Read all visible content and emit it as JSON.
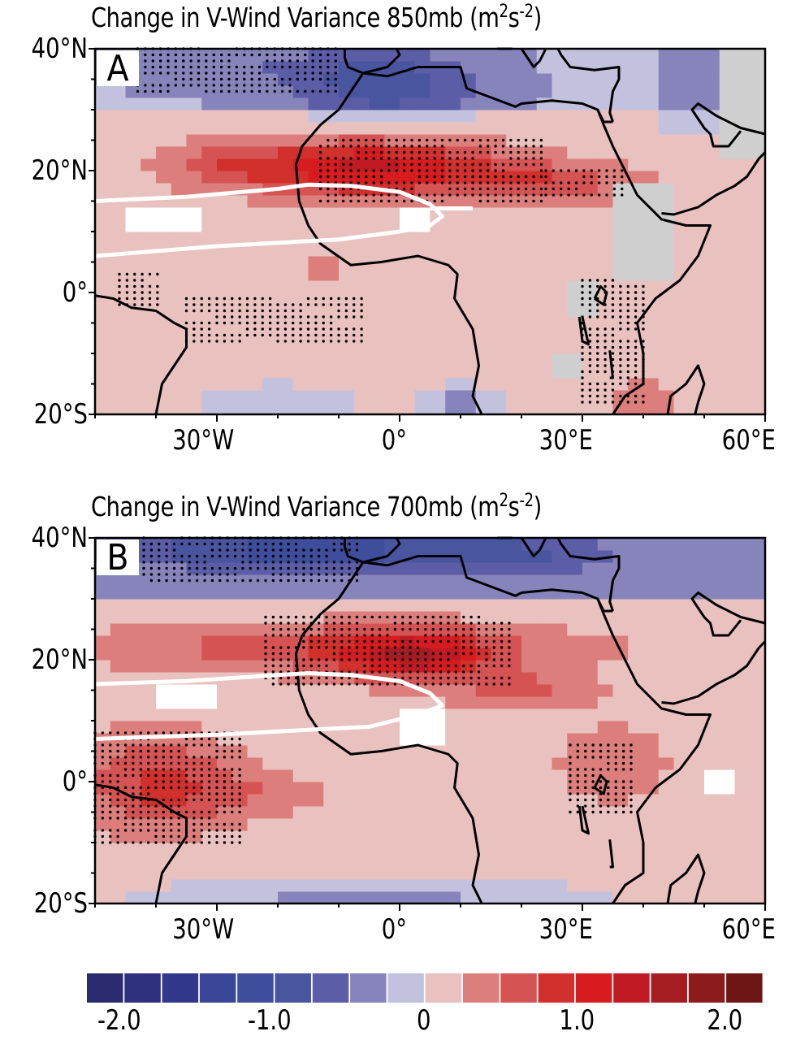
{
  "panels": [
    {
      "id": "A",
      "title": "Change in V-Wind Variance 850mb",
      "units_base": "(m",
      "units_sup1": "2",
      "units_mid": "s",
      "units_sup2": "-2",
      "units_end": ")",
      "letter": "A"
    },
    {
      "id": "B",
      "title": "Change in V-Wind Variance 700mb",
      "units_base": "(m",
      "units_sup1": "2",
      "units_mid": "s",
      "units_sup2": "-2",
      "units_end": ")",
      "letter": "B"
    }
  ],
  "axes": {
    "lat_ticks": [
      "40°N",
      "20°N",
      "0°",
      "20°S"
    ],
    "lon_ticks": [
      "30°W",
      "0°",
      "30°E",
      "60°E"
    ],
    "lon_range": [
      -50,
      60
    ],
    "lat_range": [
      -20,
      40
    ]
  },
  "colorbar": {
    "labels": [
      "-2.0",
      "-1.0",
      "0",
      "1.0",
      "2.0"
    ],
    "levels": [
      -2.0,
      -1.75,
      -1.5,
      -1.25,
      -1.0,
      -0.75,
      -0.5,
      -0.25,
      0,
      0.25,
      0.5,
      0.75,
      1.0,
      1.25,
      1.5,
      1.75,
      2.0
    ],
    "colors": [
      "#2c2a6e",
      "#2f317f",
      "#31388c",
      "#394596",
      "#3e4d9c",
      "#4a55a0",
      "#5c5da7",
      "#8784bc",
      "#c3c2de",
      "#e9c1bf",
      "#dc7e7b",
      "#d65354",
      "#d1302c",
      "#d71c20",
      "#c01b22",
      "#a51d22",
      "#8c1b1e",
      "#6e1616"
    ]
  },
  "colors": {
    "missing": "#cfcfcf",
    "jet_contour": "#ffffff",
    "coastline": "#000000"
  }
}
